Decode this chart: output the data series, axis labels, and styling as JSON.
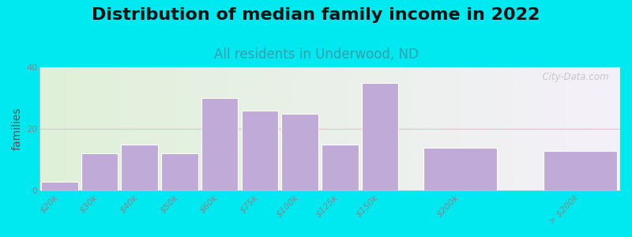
{
  "title": "Distribution of median family income in 2022",
  "subtitle": "All residents in Underwood, ND",
  "ylabel": "families",
  "categories": [
    "$20k",
    "$30k",
    "$40k",
    "$50k",
    "$60k",
    "$75k",
    "$100k",
    "$125k",
    "$150k",
    "$200k",
    "> $200k"
  ],
  "values": [
    3,
    12,
    15,
    12,
    30,
    26,
    25,
    15,
    35,
    14,
    13
  ],
  "bar_widths": [
    1,
    1,
    1,
    1,
    1,
    1,
    1,
    1,
    1,
    2,
    2
  ],
  "bar_positions": [
    0,
    1,
    2,
    3,
    4,
    5,
    6,
    7,
    8,
    10,
    13
  ],
  "bar_color": "#c0aad8",
  "bar_edgecolor": "#ffffff",
  "ylim": [
    0,
    40
  ],
  "yticks": [
    0,
    20,
    40
  ],
  "background_color": "#00e8f0",
  "grad_left": "#dff0d8",
  "grad_right": "#f5f0fa",
  "title_fontsize": 16,
  "subtitle_fontsize": 12,
  "subtitle_color": "#3a9eab",
  "watermark_text": "  City-Data.com",
  "grid_line_color": "#e8c0d0",
  "ylabel_fontsize": 10,
  "tick_fontsize": 8,
  "tick_color": "#888888"
}
